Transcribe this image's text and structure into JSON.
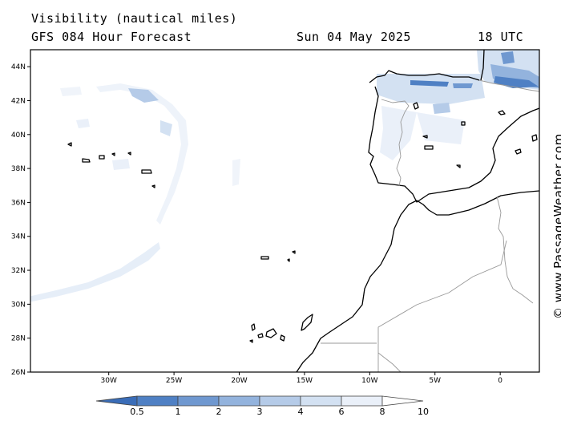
{
  "header": {
    "title": "Visibility (nautical miles)",
    "model": "GFS 084 Hour Forecast",
    "date": "Sun 04 May 2025",
    "time": "18 UTC"
  },
  "credit": "© www.PassageWeather.com",
  "map": {
    "lat_range": [
      26,
      45
    ],
    "lon_range": [
      -36,
      3
    ],
    "lat_ticks": [
      "44N",
      "42N",
      "40N",
      "38N",
      "36N",
      "34N",
      "32N",
      "30N",
      "28N",
      "26N"
    ],
    "lon_ticks": [
      "30W",
      "25W",
      "20W",
      "15W",
      "10W",
      "5W",
      "0"
    ]
  },
  "legend": {
    "values": [
      "0.5",
      "1",
      "2",
      "3",
      "4",
      "6",
      "8",
      "10"
    ],
    "colors": [
      "#3a6db8",
      "#4f80c4",
      "#6f98d0",
      "#93b3dd",
      "#b5cbe8",
      "#d3e1f2",
      "#eaf0f9",
      "#ffffff"
    ]
  }
}
